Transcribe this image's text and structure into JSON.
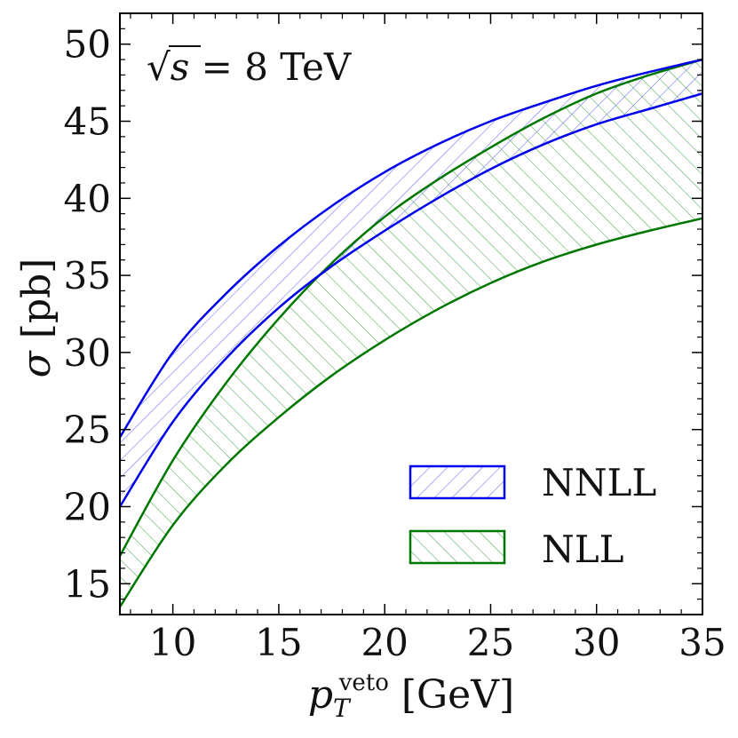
{
  "chart_data": {
    "type": "area",
    "title": "",
    "annotation": {
      "sqrt_symbol": "√",
      "variable": "s",
      "rest": " = 8 TeV"
    },
    "xlabel": {
      "main": "p",
      "subscript": "T",
      "superscript": "veto",
      "unit": " [GeV]"
    },
    "ylabel": {
      "main": "σ",
      "unit": " [pb]"
    },
    "xlim": [
      7.5,
      35
    ],
    "ylim": [
      13,
      52
    ],
    "xticks": [
      10,
      15,
      20,
      25,
      30,
      35
    ],
    "yticks": [
      15,
      20,
      25,
      30,
      35,
      40,
      45,
      50
    ],
    "grid": false,
    "legend_position": "bottom-right",
    "x": [
      7.5,
      10,
      12.5,
      15,
      17.5,
      20,
      22.5,
      25,
      27.5,
      30,
      32.5,
      35
    ],
    "series": [
      {
        "name": "NNLL",
        "color": "#0000ee",
        "hatch": "diagonal-forward",
        "upper": [
          24.5,
          30.0,
          33.8,
          36.9,
          39.5,
          41.7,
          43.5,
          45.0,
          46.2,
          47.3,
          48.2,
          49.0
        ],
        "lower": [
          20.0,
          25.5,
          29.6,
          32.9,
          35.6,
          37.9,
          40.0,
          41.9,
          43.5,
          44.8,
          45.8,
          46.8
        ]
      },
      {
        "name": "NLL",
        "color": "#007700",
        "hatch": "diagonal-backward",
        "upper": [
          16.8,
          23.0,
          28.0,
          32.2,
          35.8,
          38.8,
          41.2,
          43.3,
          45.2,
          46.8,
          48.0,
          49.0
        ],
        "lower": [
          13.5,
          18.8,
          22.7,
          25.8,
          28.5,
          30.8,
          32.8,
          34.5,
          35.9,
          37.0,
          37.9,
          38.7
        ]
      }
    ]
  }
}
